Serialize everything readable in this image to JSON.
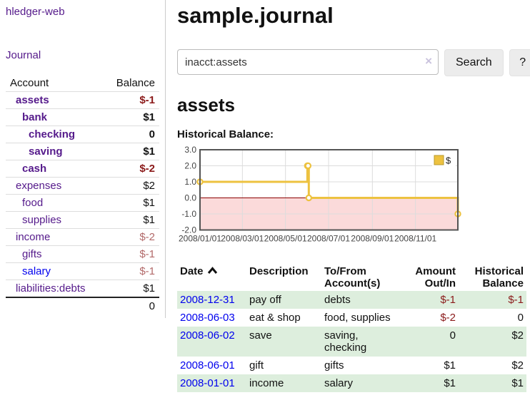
{
  "app": {
    "title": "hledger-web"
  },
  "sidebar": {
    "journal_link": "Journal",
    "accounts_table": {
      "account_header": "Account",
      "balance_header": "Balance",
      "rows": [
        {
          "name": "assets",
          "balance": "$-1"
        },
        {
          "name": "bank",
          "balance": "$1"
        },
        {
          "name": "checking",
          "balance": "0"
        },
        {
          "name": "saving",
          "balance": "$1"
        },
        {
          "name": "cash",
          "balance": "$-2"
        },
        {
          "name": "expenses",
          "balance": "$2"
        },
        {
          "name": "food",
          "balance": "$1"
        },
        {
          "name": "supplies",
          "balance": "$1"
        },
        {
          "name": "income",
          "balance": "$-2"
        },
        {
          "name": "gifts",
          "balance": "$-1"
        },
        {
          "name": "salary",
          "balance": "$-1"
        },
        {
          "name": "liabilities:debts",
          "balance": "$1"
        }
      ],
      "total": "0"
    }
  },
  "main": {
    "title": "sample.journal",
    "search": {
      "value": "inacct:assets",
      "clear_icon": "×",
      "search_button": "Search",
      "help_button": "?"
    },
    "account_heading": "assets",
    "chart_title": "Historical Balance:",
    "register": {
      "headers": {
        "date": "Date",
        "description": "Description",
        "accounts": "To/From Account(s)",
        "amount": "Amount Out/In",
        "balance": "Historical Balance"
      },
      "rows": [
        {
          "date": "2008-12-31",
          "description": "pay off",
          "accounts": "debts",
          "amount": "$-1",
          "balance": "$-1"
        },
        {
          "date": "2008-06-03",
          "description": "eat & shop",
          "accounts": "food, supplies",
          "amount": "$-2",
          "balance": "0"
        },
        {
          "date": "2008-06-02",
          "description": "save",
          "accounts": "saving, checking",
          "amount": "0",
          "balance": "$2"
        },
        {
          "date": "2008-06-01",
          "description": "gift",
          "accounts": "gifts",
          "amount": "$1",
          "balance": "$2"
        },
        {
          "date": "2008-01-01",
          "description": "income",
          "accounts": "salary",
          "amount": "$1",
          "balance": "$1"
        }
      ]
    }
  },
  "chart_data": {
    "type": "line",
    "title": "Historical Balance",
    "legend": {
      "position": "top-right",
      "label": "$"
    },
    "series": [
      {
        "name": "$",
        "steps": true,
        "color": "#edc240",
        "points": [
          [
            "2008-01-01",
            1
          ],
          [
            "2008-06-01",
            2
          ],
          [
            "2008-06-02",
            2
          ],
          [
            "2008-06-03",
            0
          ],
          [
            "2008-12-31",
            -1
          ]
        ]
      }
    ],
    "xlim": [
      "2008-01-01",
      "2008-12-31"
    ],
    "ylim": [
      -2,
      3
    ],
    "y_ticks": [
      "3.0",
      "2.0",
      "1.0",
      "0.0",
      "-1.0",
      "-2.0"
    ],
    "x_ticks": [
      "2008/01/01",
      "2008/03/01",
      "2008/05/01",
      "2008/07/01",
      "2008/09/01",
      "2008/11/01"
    ],
    "grid": true,
    "colors": {
      "line": "#edc240",
      "point_fill": "#ffffff",
      "negative_region": "#fbdada",
      "zero_line": "#8b0000",
      "grid": "#dcdcdc",
      "border": "#545454",
      "tick_text": "#444444"
    }
  }
}
